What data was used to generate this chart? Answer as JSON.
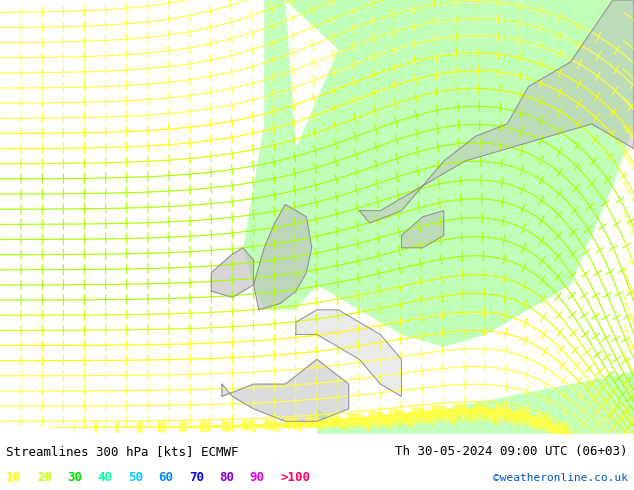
{
  "title_left": "Streamlines 300 hPa [kts] ECMWF",
  "title_right": "Th 30-05-2024 09:00 UTC (06+03)",
  "watermark": "©weatheronline.co.uk",
  "legend_values": [
    "10",
    "20",
    "30",
    "40",
    "50",
    "60",
    "70",
    "80",
    "90",
    ">100"
  ],
  "legend_colors": [
    "#ffff00",
    "#c8ff00",
    "#00dd00",
    "#00ffaa",
    "#00ccff",
    "#0088ff",
    "#0000ff",
    "#8800cc",
    "#dd00dd",
    "#ff0066"
  ],
  "bg_color": "#cccccc",
  "green_color": "#b8ffb0",
  "fig_bg": "#ffffff",
  "text_color": "#000000",
  "watermark_color": "#0055bb",
  "coast_color": "#888888",
  "title_fontsize": 9,
  "legend_fontsize": 9
}
